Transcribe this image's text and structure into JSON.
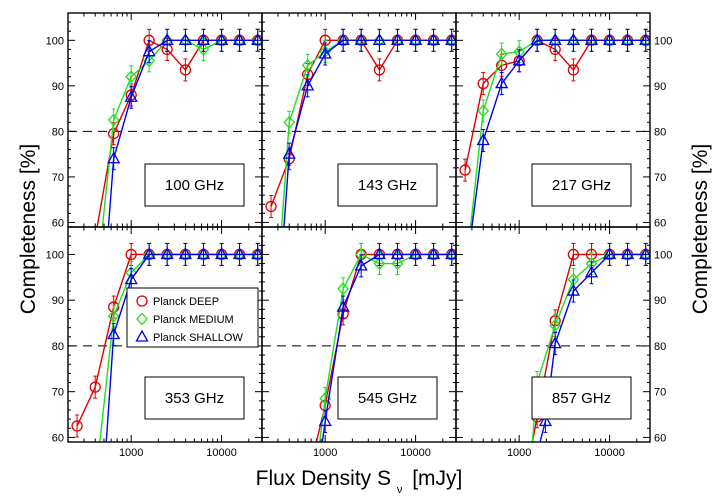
{
  "chart_data": {
    "type": "line",
    "xlabel": "Flux Density S",
    "xlabel_subscript": "ν",
    "xlabel_unit": "[mJy]",
    "ylabel_left": "Completeness [%]",
    "ylabel_right": "Completeness [%]",
    "x_scale": "log",
    "xlim": [
      200,
      28000
    ],
    "ylim": [
      59,
      106
    ],
    "x_ticks": [
      1000,
      10000
    ],
    "x_tick_labels": [
      "1000",
      "10000"
    ],
    "y_ticks": [
      60,
      70,
      80,
      90,
      100
    ],
    "y_tick_labels": [
      "60",
      "70",
      "80",
      "90",
      "100"
    ],
    "reference_line": 80,
    "legend": {
      "placement": "panel 353 GHz, middle",
      "entries": [
        {
          "label": "Planck DEEP",
          "color": "#dd0000",
          "marker": "circle"
        },
        {
          "label": "Planck MEDIUM",
          "color": "#22dd22",
          "marker": "diamond"
        },
        {
          "label": "Planck SHALLOW",
          "color": "#0000ee",
          "marker": "triangle"
        }
      ]
    },
    "panels": [
      {
        "label": "100 GHz",
        "series": [
          {
            "name": "Planck DEEP",
            "x": [
              420,
              640,
              1000,
              1580,
              2500,
              3980,
              6310,
              10000,
              15800,
              25100
            ],
            "y": [
              59,
              79.5,
              88,
              100,
              98,
              93.5,
              100,
              100,
              100,
              100
            ]
          },
          {
            "name": "Planck MEDIUM",
            "x": [
              480,
              640,
              1000,
              1580,
              2500,
              3980,
              6310,
              10000,
              15800,
              25100
            ],
            "y": [
              59,
              82.5,
              92,
              95.5,
              100,
              100,
              98,
              100,
              100,
              100
            ]
          },
          {
            "name": "Planck SHALLOW",
            "x": [
              560,
              640,
              1000,
              1580,
              2500,
              3980,
              6310,
              10000,
              15800,
              25100
            ],
            "y": [
              59,
              74,
              87.5,
              97.5,
              100,
              100,
              100,
              100,
              100,
              100
            ]
          }
        ]
      },
      {
        "label": "143 GHz",
        "series": [
          {
            "name": "Planck DEEP",
            "x": [
              252,
              400,
              640,
              1000,
              1580,
              2500,
              3980,
              6310,
              10000,
              15800,
              25100
            ],
            "y": [
              63.5,
              74,
              92.5,
              100,
              100,
              100,
              93.5,
              100,
              100,
              100,
              100
            ]
          },
          {
            "name": "Planck MEDIUM",
            "x": [
              330,
              400,
              640,
              1000,
              1580,
              2500,
              3980,
              6310,
              10000,
              15800,
              25100
            ],
            "y": [
              59,
              82,
              94.5,
              97.5,
              100,
              100,
              100,
              100,
              100,
              100,
              100
            ]
          },
          {
            "name": "Planck SHALLOW",
            "x": [
              350,
              400,
              640,
              1000,
              1580,
              2500,
              3980,
              6310,
              10000,
              15800,
              25100
            ],
            "y": [
              59,
              75,
              90,
              97,
              100,
              100,
              100,
              100,
              100,
              100,
              100
            ]
          }
        ]
      },
      {
        "label": "217 GHz",
        "series": [
          {
            "name": "Planck DEEP",
            "x": [
              252,
              400,
              640,
              1000,
              1580,
              2500,
              3980,
              6310,
              10000,
              15800,
              25100
            ],
            "y": [
              71.5,
              90.5,
              94.5,
              95.5,
              100,
              98,
              93.5,
              100,
              100,
              100,
              100
            ]
          },
          {
            "name": "Planck MEDIUM",
            "x": [
              290,
              400,
              640,
              1000,
              1580,
              2500,
              3980,
              6310,
              10000,
              15800,
              25100
            ],
            "y": [
              59,
              84.5,
              97,
              97.5,
              100,
              100,
              100,
              100,
              100,
              100,
              100
            ]
          },
          {
            "name": "Planck SHALLOW",
            "x": [
              300,
              400,
              640,
              1000,
              1580,
              2500,
              3980,
              6310,
              10000,
              15800,
              25100
            ],
            "y": [
              59,
              78,
              90.5,
              95.5,
              100,
              100,
              100,
              100,
              100,
              100,
              100
            ]
          }
        ]
      },
      {
        "label": "353 GHz",
        "series": [
          {
            "name": "Planck DEEP",
            "x": [
              252,
              400,
              640,
              1000,
              1580,
              2500,
              3980,
              6310,
              10000,
              15800,
              25100
            ],
            "y": [
              62.5,
              71,
              88.5,
              100,
              100,
              100,
              100,
              100,
              100,
              100,
              100
            ]
          },
          {
            "name": "Planck MEDIUM",
            "x": [
              450,
              640,
              1000,
              1580,
              2500,
              3980,
              6310,
              10000,
              15800,
              25100
            ],
            "y": [
              59,
              86.5,
              96,
              100,
              100,
              100,
              100,
              100,
              100,
              100
            ]
          },
          {
            "name": "Planck SHALLOW",
            "x": [
              530,
              640,
              1000,
              1580,
              2500,
              3980,
              6310,
              10000,
              15800,
              25100
            ],
            "y": [
              59,
              82.5,
              94.5,
              100,
              100,
              100,
              100,
              100,
              100,
              100
            ]
          }
        ]
      },
      {
        "label": "545 GHz",
        "series": [
          {
            "name": "Planck DEEP",
            "x": [
              800,
              1000,
              1580,
              2500,
              3980,
              6310,
              10000,
              15800,
              25100
            ],
            "y": [
              59,
              67,
              87,
              100,
              100,
              100,
              100,
              100,
              100
            ]
          },
          {
            "name": "Planck MEDIUM",
            "x": [
              870,
              1000,
              1580,
              2500,
              3980,
              6310,
              10000,
              15800,
              25100
            ],
            "y": [
              59,
              68.5,
              92.5,
              100,
              98,
              98,
              100,
              100,
              100
            ]
          },
          {
            "name": "Planck SHALLOW",
            "x": [
              930,
              1000,
              1580,
              2500,
              3980,
              6310,
              10000,
              15800,
              25100
            ],
            "y": [
              59,
              63.5,
              88.5,
              97.5,
              100,
              100,
              100,
              100,
              100
            ]
          }
        ]
      },
      {
        "label": "857 GHz",
        "series": [
          {
            "name": "Planck DEEP",
            "x": [
              1400,
              1580,
              2500,
              3980,
              6310,
              10000,
              15800,
              25100
            ],
            "y": [
              59,
              64.5,
              85.5,
              100,
              100,
              100,
              100,
              100
            ]
          },
          {
            "name": "Planck MEDIUM",
            "x": [
              1400,
              1580,
              2500,
              3980,
              6310,
              10000,
              15800,
              25100
            ],
            "y": [
              59,
              72,
              84.5,
              94.5,
              98,
              100,
              100,
              100
            ]
          },
          {
            "name": "Planck SHALLOW",
            "x": [
              1700,
              1950,
              2500,
              3980,
              6310,
              10000,
              15800,
              25100
            ],
            "y": [
              59,
              63.5,
              80.5,
              92,
              96,
              100,
              100,
              100
            ]
          }
        ]
      }
    ]
  }
}
